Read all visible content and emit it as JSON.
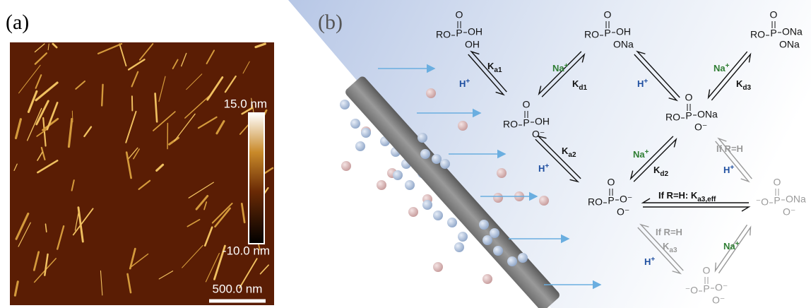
{
  "panel_a": {
    "label": "(a)",
    "colorbar_max": "15.0 nm",
    "colorbar_min": "-10.0 nm",
    "scale_bar": "500.0 nm"
  },
  "panel_b": {
    "label": "(b)",
    "species": [
      {
        "top": "O",
        "left": "RO",
        "center": "P",
        "right": "OH",
        "bottom": "OH"
      },
      {
        "top": "O",
        "left": "RO",
        "center": "P",
        "right": "OH",
        "bottom": "ONa"
      },
      {
        "top": "O",
        "left": "RO",
        "center": "P",
        "right": "ONa",
        "bottom": "ONa"
      },
      {
        "top": "O",
        "left": "RO",
        "center": "P",
        "right": "OH",
        "bottom": "O⁻"
      },
      {
        "top": "O",
        "left": "RO",
        "center": "P",
        "right": "ONa",
        "bottom": "O⁻"
      },
      {
        "top": "O",
        "left": "RO",
        "center": "P",
        "right": "O⁻",
        "bottom": "O⁻"
      },
      {
        "top": "O",
        "left": "⁻O",
        "center": "P",
        "right": "ONa",
        "bottom": "O⁻"
      },
      {
        "top": "O",
        "left": "⁻O",
        "center": "P",
        "right": "O⁻",
        "bottom": "O⁻"
      }
    ],
    "labels": [
      {
        "main": "K",
        "sub": "a1"
      },
      {
        "main": "H",
        "sup": "+"
      },
      {
        "main": "Na",
        "sup": "+"
      },
      {
        "main": "K",
        "sub": "d1"
      },
      {
        "main": "H",
        "sup": "+"
      },
      {
        "main": "Na",
        "sup": "+"
      },
      {
        "main": "K",
        "sub": "d3"
      },
      {
        "main": "K",
        "sub": "a2"
      },
      {
        "main": "H",
        "sup": "+"
      },
      {
        "main": "Na",
        "sup": "+"
      },
      {
        "main": "K",
        "sub": "d2"
      },
      {
        "main": "If R=H"
      },
      {
        "main": "H",
        "sup": "+"
      },
      {
        "main": "If R=H: K",
        "sub": "a3,eff"
      },
      {
        "main": "If R=H"
      },
      {
        "main": "K",
        "sub": "a3"
      },
      {
        "main": "H",
        "sup": "+"
      },
      {
        "main": "Na",
        "sup": "+"
      }
    ]
  }
}
